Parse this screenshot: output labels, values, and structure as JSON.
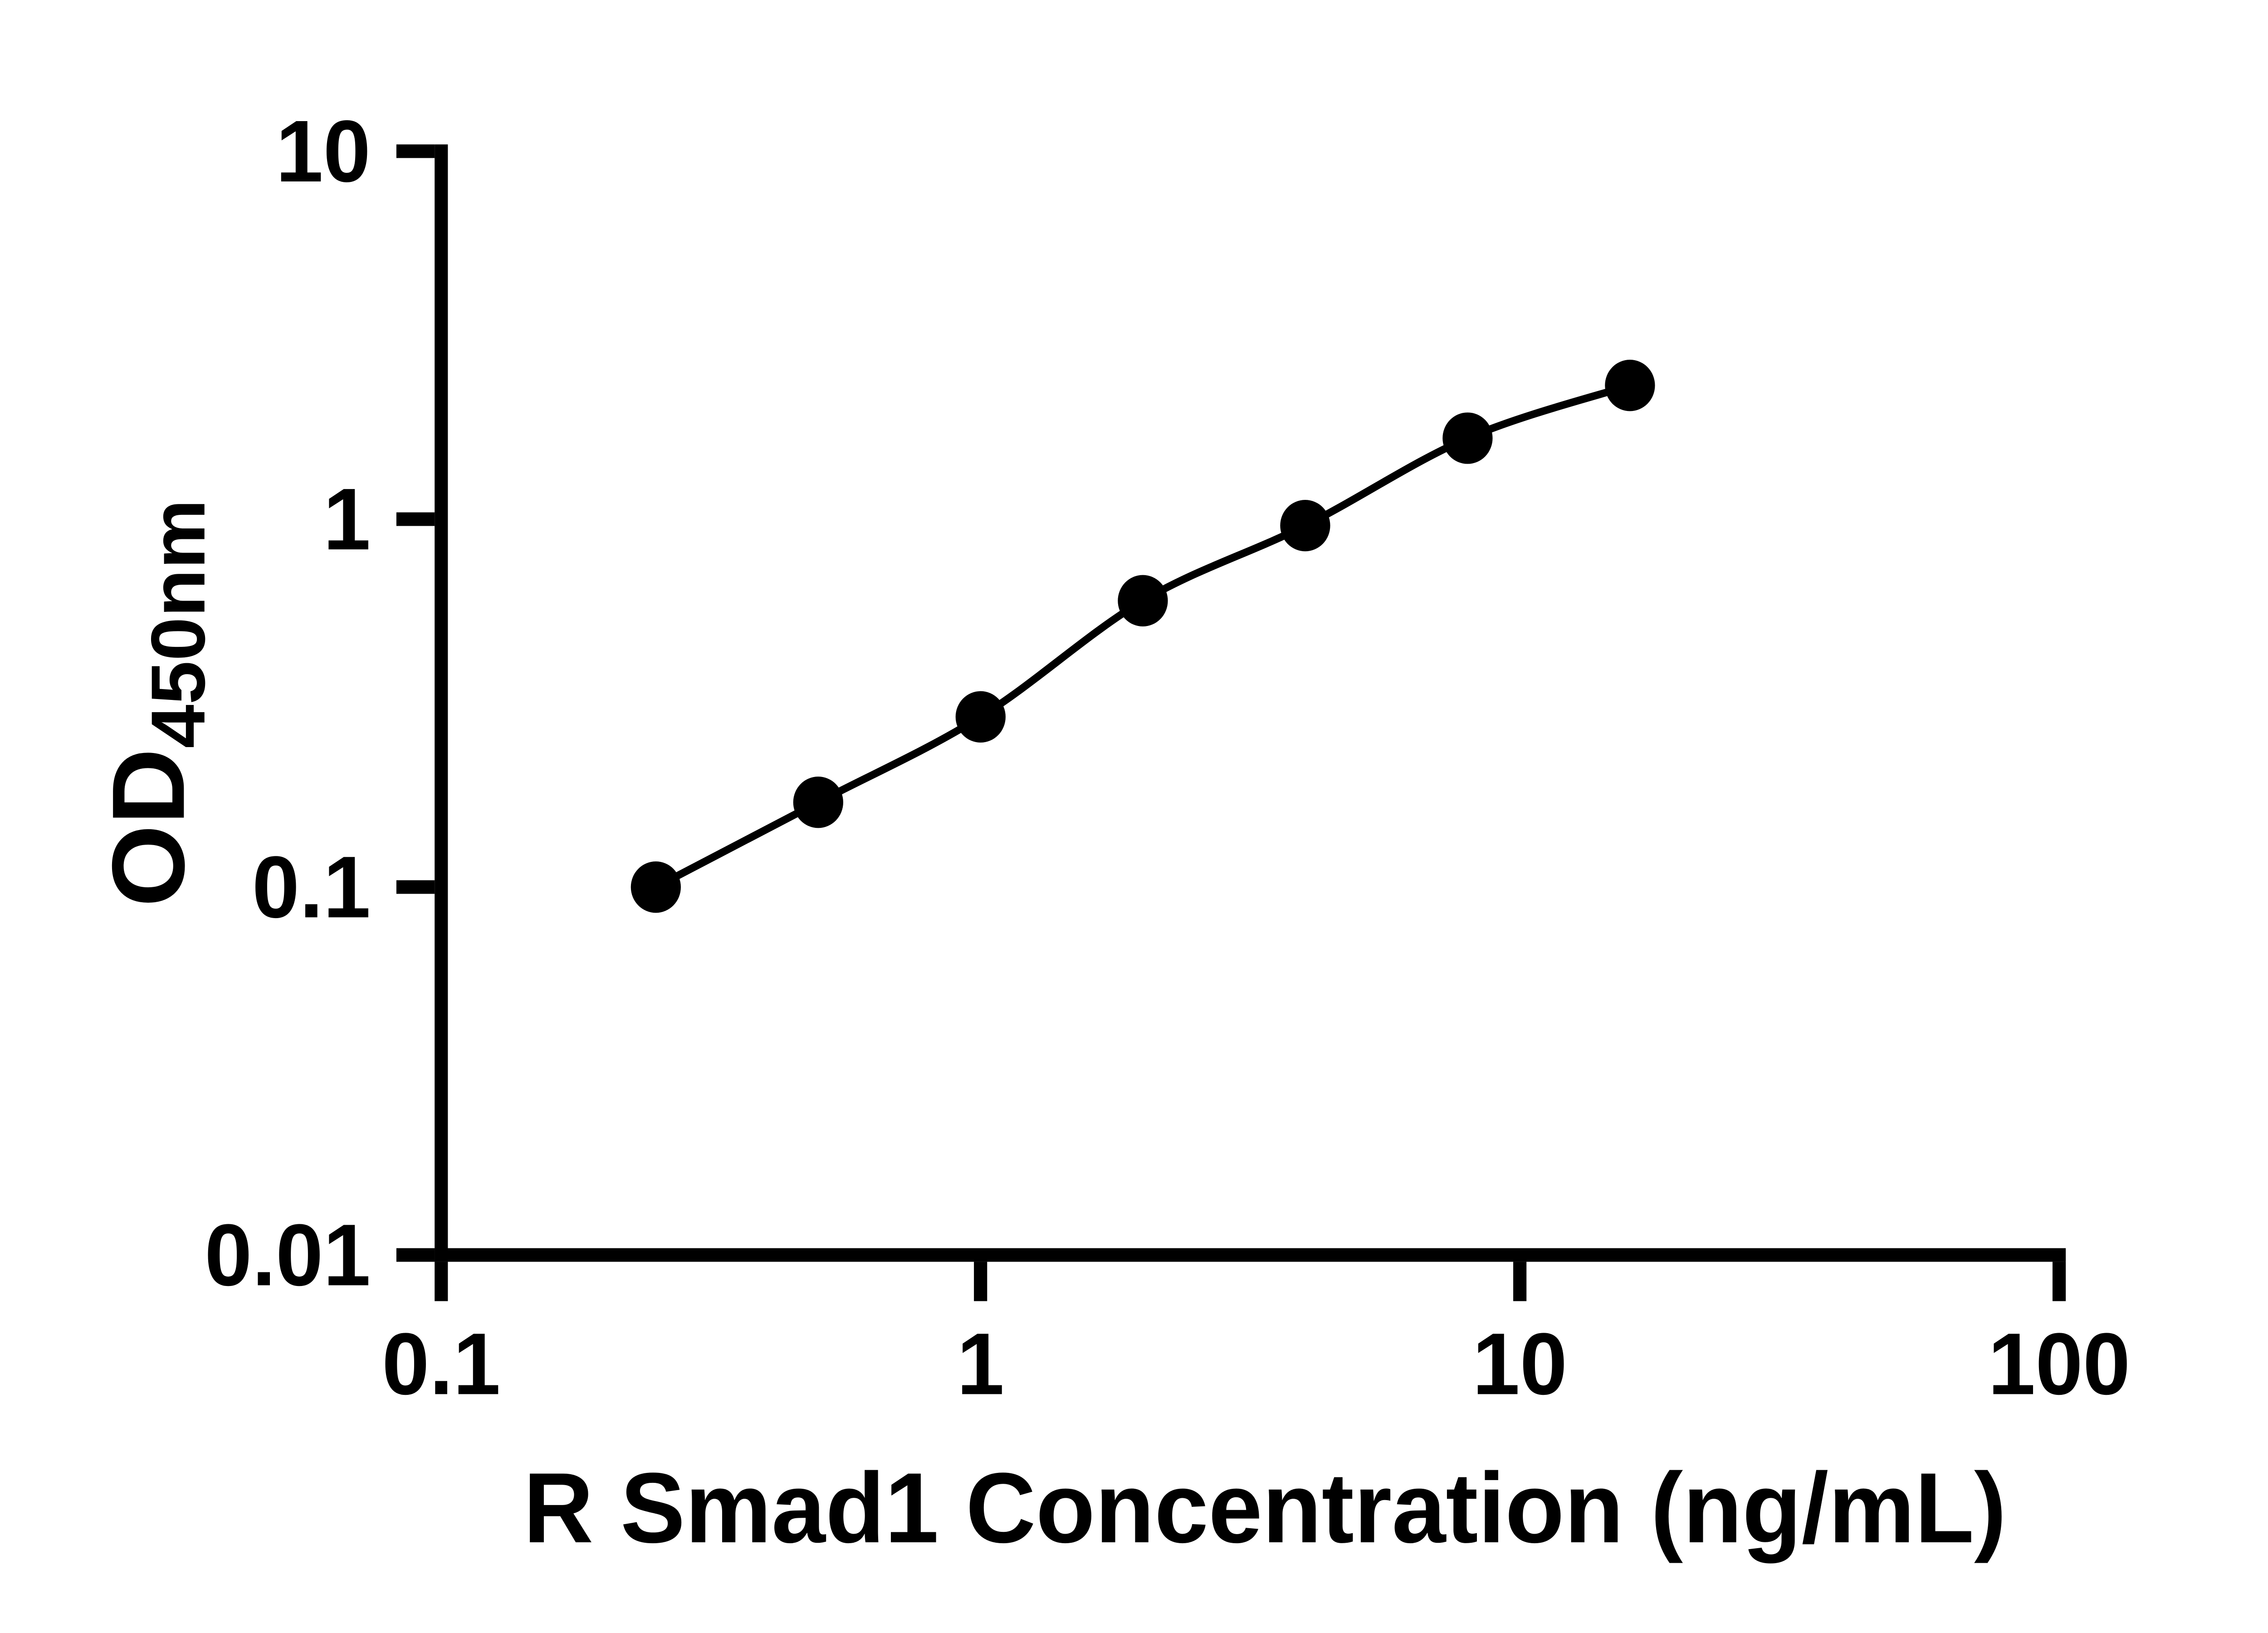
{
  "figure": {
    "background": "#ffffff"
  },
  "chart_data": {
    "type": "line",
    "title": "",
    "xlabel": "R Smad1 Concentration (ng/mL)",
    "ylabel": "OD450nm",
    "ylabel_base": "OD",
    "ylabel_sub": "450nm",
    "xscale": "log",
    "yscale": "log",
    "xlim": [
      0.1,
      100
    ],
    "ylim": [
      0.01,
      10
    ],
    "x_tick_values": [
      0.1,
      1,
      10,
      100
    ],
    "x_tick_labels": [
      "0.1",
      "1",
      "10",
      "100"
    ],
    "y_tick_values": [
      10,
      1,
      0.1,
      0.01
    ],
    "y_tick_labels": [
      "10",
      "1",
      "0.1",
      "0.01"
    ],
    "grid": false,
    "legend_visible": false,
    "series": [
      {
        "marker": "filled-circle",
        "line_style": "smooth",
        "x": [
          0.25,
          0.5,
          1,
          2,
          4,
          8,
          16
        ],
        "y": [
          0.1,
          0.17,
          0.29,
          0.6,
          0.96,
          1.66,
          2.31
        ]
      }
    ],
    "colors": {
      "axis": "#000000",
      "tick_label": "#000000",
      "curve": "#000000",
      "marker": "#000000",
      "axis_title": "#000000",
      "background": "#ffffff"
    }
  }
}
